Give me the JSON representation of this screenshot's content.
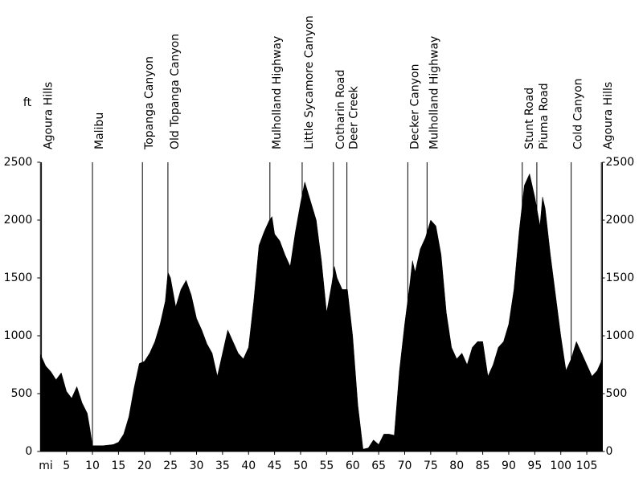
{
  "chart_data": {
    "type": "area",
    "x_label": "mi",
    "y_label": "ft",
    "x": [
      0,
      1,
      2,
      3,
      4,
      5,
      6,
      7,
      8,
      9,
      9.5,
      10,
      11,
      12,
      13,
      14,
      15,
      16,
      17,
      18,
      19,
      20,
      21,
      22,
      23,
      24,
      24.5,
      25,
      26,
      27,
      28,
      29,
      30,
      31,
      32,
      33,
      34,
      35,
      36,
      37,
      38,
      39,
      40,
      41,
      42,
      43,
      44,
      44.5,
      45,
      46,
      47,
      48,
      49,
      50,
      50.8,
      51,
      52,
      53,
      54,
      55,
      56,
      56.5,
      57,
      58,
      59,
      60,
      61,
      62,
      63,
      64,
      65,
      66,
      67,
      68,
      69,
      70,
      71,
      71.5,
      72,
      73,
      74,
      75,
      76,
      77,
      78,
      79,
      80,
      81,
      82,
      83,
      84,
      85,
      86,
      87,
      88,
      89,
      90,
      91,
      92,
      93,
      94,
      95,
      96,
      96.5,
      97,
      98,
      99,
      100,
      101,
      102,
      103,
      104,
      105,
      106,
      107,
      108
    ],
    "series": [
      {
        "color": "#000000",
        "values": [
          840,
          740,
          690,
          620,
          680,
          520,
          460,
          560,
          420,
          330,
          200,
          50,
          50,
          50,
          55,
          60,
          80,
          150,
          300,
          550,
          760,
          780,
          850,
          950,
          1100,
          1300,
          1550,
          1500,
          1250,
          1400,
          1480,
          1350,
          1150,
          1050,
          930,
          850,
          650,
          850,
          1050,
          950,
          850,
          800,
          900,
          1300,
          1780,
          1900,
          2000,
          2030,
          1880,
          1820,
          1700,
          1600,
          1900,
          2150,
          2330,
          2300,
          2150,
          2000,
          1650,
          1200,
          1450,
          1600,
          1500,
          1400,
          1400,
          1000,
          400,
          20,
          30,
          100,
          60,
          150,
          150,
          140,
          700,
          1100,
          1450,
          1650,
          1550,
          1750,
          1850,
          2000,
          1950,
          1700,
          1200,
          900,
          800,
          850,
          750,
          900,
          950,
          950,
          650,
          750,
          900,
          950,
          1100,
          1400,
          1900,
          2300,
          2400,
          2200,
          1950,
          2200,
          2100,
          1700,
          1350,
          1000,
          700,
          800,
          950,
          850,
          750,
          650,
          700,
          800
        ]
      }
    ],
    "xlim": [
      0,
      108
    ],
    "ylim": [
      0,
      2500
    ],
    "y2lim": [
      0,
      2500
    ],
    "xticks": [
      5,
      10,
      15,
      20,
      25,
      30,
      35,
      40,
      45,
      50,
      55,
      60,
      65,
      70,
      75,
      80,
      85,
      90,
      95,
      100,
      105
    ],
    "yticks": [
      0,
      500,
      1000,
      1500,
      2000,
      2500
    ],
    "y2ticks": [
      0,
      500,
      1000,
      1500,
      2000,
      2500
    ],
    "annotations": [
      {
        "label": "Agoura Hills",
        "x": 0.2
      },
      {
        "label": "Malibu",
        "x": 10
      },
      {
        "label": "Topanga Canyon",
        "x": 19.6
      },
      {
        "label": "Old Topanga Canyon",
        "x": 24.5
      },
      {
        "label": "Mulholland Highway",
        "x": 44.1
      },
      {
        "label": "Little Sycamore Canyon",
        "x": 50.3
      },
      {
        "label": "Cotharin Road",
        "x": 56.3
      },
      {
        "label": "Deer Creek",
        "x": 58.9
      },
      {
        "label": "Decker Canyon",
        "x": 70.6
      },
      {
        "label": "Mulholland Highway",
        "x": 74.3
      },
      {
        "label": "Stunt Road",
        "x": 92.6
      },
      {
        "label": "Piuma Road",
        "x": 95.4
      },
      {
        "label": "Cold Canyon",
        "x": 102
      },
      {
        "label": "Agoura Hills",
        "x": 107.8
      }
    ]
  }
}
